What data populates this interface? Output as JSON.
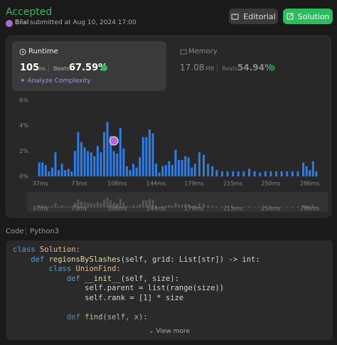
{
  "header": {
    "status": "Accepted",
    "user": "Bilal",
    "submitted": "submitted at Aug 10, 2024 17:00",
    "buttons": [
      "Editorial",
      "Solution"
    ]
  },
  "runtime": {
    "label": "Runtime",
    "value": 105,
    "unit": "ms",
    "beats_label": "Beats",
    "beats": "67.59%",
    "link": "Analyze Complexity"
  },
  "memory": {
    "label": "Memory",
    "value": "17.08",
    "unit": "MB",
    "beats_label": "Beats",
    "beats": "54.94%"
  },
  "chart_data": {
    "type": "bar",
    "color": "#2b7de9",
    "grid": true,
    "x": [
      36,
      39,
      42,
      45,
      48,
      51,
      54,
      57,
      60,
      63,
      66,
      69,
      72,
      75,
      78,
      81,
      84,
      87,
      90,
      93,
      96,
      99,
      102,
      105,
      108,
      111,
      114,
      117,
      120,
      123,
      126,
      129,
      132,
      135,
      138,
      141,
      144,
      147,
      150,
      153,
      156,
      159,
      162,
      165,
      168,
      171,
      174,
      177,
      180,
      184,
      188,
      192,
      196,
      200,
      205,
      210,
      215,
      220,
      225,
      230,
      235,
      240,
      245,
      250,
      255,
      260,
      265,
      270,
      275,
      280,
      283,
      286,
      289,
      292
    ],
    "values": [
      1.1,
      1.1,
      0.9,
      0.4,
      0.7,
      1.9,
      0.5,
      1.0,
      0.5,
      0.6,
      0.4,
      2.0,
      3.5,
      2.7,
      2.3,
      2.0,
      1.9,
      1.6,
      2.4,
      1.9,
      3.5,
      4.3,
      3.2,
      2.0,
      1.8,
      3.8,
      2.2,
      0.8,
      0.5,
      1.0,
      0.7,
      1.5,
      3.1,
      3.1,
      3.7,
      3.4,
      1.0,
      0.3,
      0.8,
      0.9,
      1.2,
      0.9,
      2.1,
      1.3,
      1.3,
      1.6,
      1.5,
      0.7,
      1.0,
      1.9,
      1.7,
      1.0,
      0.8,
      0.5,
      0.4,
      0.4,
      0.4,
      0.4,
      0.4,
      0.6,
      0.4,
      0.3,
      0.4,
      0.4,
      0.4,
      0.4,
      0.4,
      0.4,
      0.4,
      1.1,
      0.8,
      0.5,
      1.2,
      0.4
    ],
    "xlim": [
      30,
      298
    ],
    "xticks": [
      {
        "value": 37,
        "label": "37ms"
      },
      {
        "value": 73,
        "label": "73ms"
      },
      {
        "value": 108,
        "label": "108ms"
      },
      {
        "value": 144,
        "label": "144ms"
      },
      {
        "value": 179,
        "label": "179ms"
      },
      {
        "value": 215,
        "label": "215ms"
      },
      {
        "value": 250,
        "label": "250ms"
      },
      {
        "value": 286,
        "label": "286ms"
      }
    ],
    "ylim": [
      0,
      6
    ],
    "yticks": [
      {
        "value": 0,
        "label": "0%"
      },
      {
        "value": 2,
        "label": "2%"
      },
      {
        "value": 4,
        "label": "4%"
      },
      {
        "value": 6,
        "label": "6%"
      }
    ]
  },
  "code": {
    "tab": "Code",
    "language": "Python3",
    "more": "View more",
    "lines": [
      {
        "tokens": [
          {
            "text": "class ",
            "color": "#569cd6"
          },
          {
            "text": "Solution:",
            "color": "#e5c07b"
          }
        ]
      },
      {
        "tokens": [
          {
            "text": "    def ",
            "color": "#569cd6"
          },
          {
            "text": "regionsBySlashes",
            "color": "#dcdcaa"
          },
          {
            "text": "(self, grid: List[str]) -> int:",
            "color": "#d4d4d4"
          }
        ]
      },
      {
        "tokens": [
          {
            "text": "        class ",
            "color": "#569cd6"
          },
          {
            "text": "UnionFind:",
            "color": "#e5c07b"
          }
        ]
      },
      {
        "tokens": [
          {
            "text": "            def ",
            "color": "#569cd6"
          },
          {
            "text": "__init__",
            "color": "#dcdcaa"
          },
          {
            "text": "(self, size):",
            "color": "#d4d4d4"
          }
        ]
      },
      {
        "tokens": [
          {
            "text": "                self.parent = list(range(size))",
            "color": "#d4d4d4"
          }
        ]
      },
      {
        "tokens": [
          {
            "text": "                self.rank = [1] * size",
            "color": "#d4d4d4"
          }
        ]
      },
      {
        "tokens": []
      },
      {
        "tokens": [
          {
            "text": "            def ",
            "color": "#569cd6"
          },
          {
            "text": "find",
            "color": "#dcdcaa"
          },
          {
            "text": "(self, x):",
            "color": "#d4d4d4"
          }
        ]
      }
    ]
  }
}
